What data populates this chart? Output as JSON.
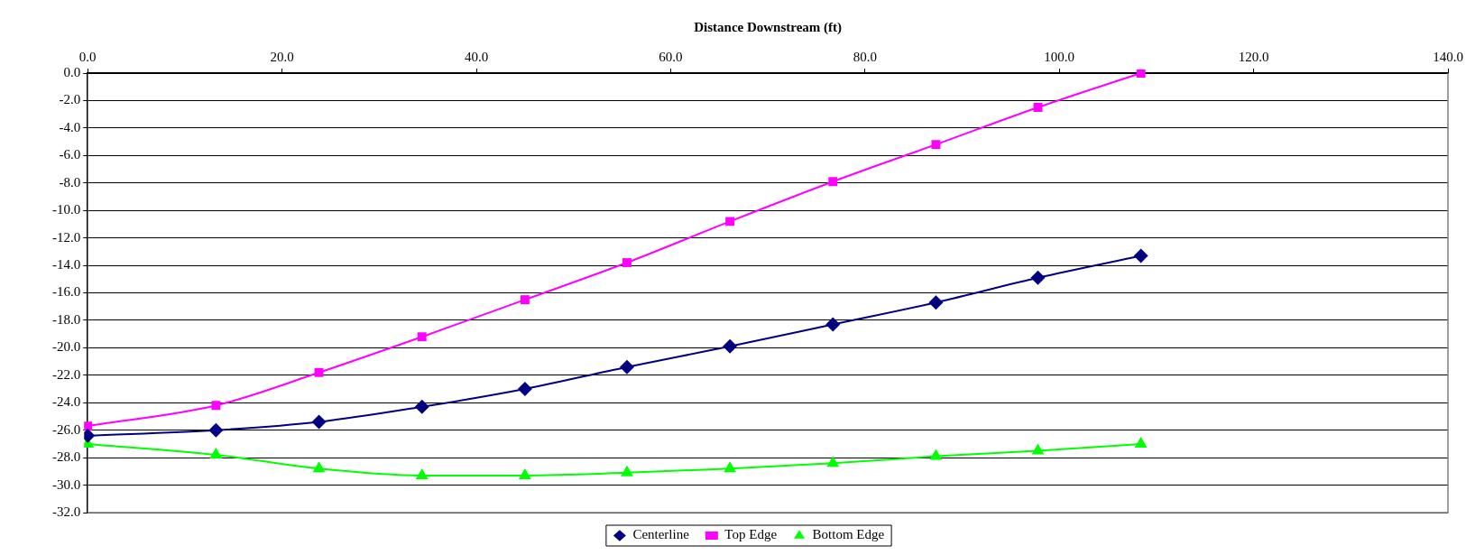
{
  "chart_data": {
    "type": "line",
    "xlabel": "Distance Downstream (ft)",
    "x": [
      0,
      13.2,
      23.8,
      34.4,
      45.0,
      55.5,
      66.1,
      76.7,
      87.3,
      97.8,
      108.4
    ],
    "series": [
      {
        "name": "Centerline",
        "color": "#000080",
        "marker": "diamond",
        "values": [
          -26.4,
          -26.0,
          -25.4,
          -24.3,
          -23.0,
          -21.4,
          -19.9,
          -18.3,
          -16.7,
          -14.9,
          -13.3
        ]
      },
      {
        "name": "Top Edge",
        "color": "#ff00ff",
        "marker": "square",
        "values": [
          -25.7,
          -24.2,
          -21.8,
          -19.2,
          -16.5,
          -13.8,
          -10.8,
          -7.9,
          -5.2,
          -2.5,
          0
        ]
      },
      {
        "name": "Bottom Edge",
        "color": "#00ff00",
        "marker": "triangle",
        "values": [
          -27.0,
          -27.8,
          -28.8,
          -29.3,
          -29.3,
          -29.1,
          -28.8,
          -28.4,
          -27.9,
          -27.5,
          -27.0
        ]
      }
    ],
    "xlim": [
      0,
      140
    ],
    "xticks": [
      {
        "value": 0,
        "label": "0.0"
      },
      {
        "value": 20,
        "label": "20.0"
      },
      {
        "value": 40,
        "label": "40.0"
      },
      {
        "value": 60,
        "label": "60.0"
      },
      {
        "value": 80,
        "label": "80.0"
      },
      {
        "value": 100,
        "label": "100.0"
      },
      {
        "value": 120,
        "label": "120.0"
      },
      {
        "value": 140,
        "label": "140.0"
      }
    ],
    "ylim": [
      -32,
      0
    ],
    "yticks": [
      {
        "value": 0,
        "label": "0.0"
      },
      {
        "value": -2,
        "label": "-2.0"
      },
      {
        "value": -4,
        "label": "-4.0"
      },
      {
        "value": -6,
        "label": "-6.0"
      },
      {
        "value": -8,
        "label": "-8.0"
      },
      {
        "value": -10,
        "label": "-10.0"
      },
      {
        "value": -12,
        "label": "-12.0"
      },
      {
        "value": -14,
        "label": "-14.0"
      },
      {
        "value": -16,
        "label": "-16.0"
      },
      {
        "value": -18,
        "label": "-18.0"
      },
      {
        "value": -20,
        "label": "-20.0"
      },
      {
        "value": -22,
        "label": "-22.0"
      },
      {
        "value": -24,
        "label": "-24.0"
      },
      {
        "value": -26,
        "label": "-26.0"
      },
      {
        "value": -28,
        "label": "-28.0"
      },
      {
        "value": -30,
        "label": "-30.0"
      },
      {
        "value": -32,
        "label": "-32.0"
      }
    ],
    "grid": "y",
    "legend": "bottom"
  }
}
